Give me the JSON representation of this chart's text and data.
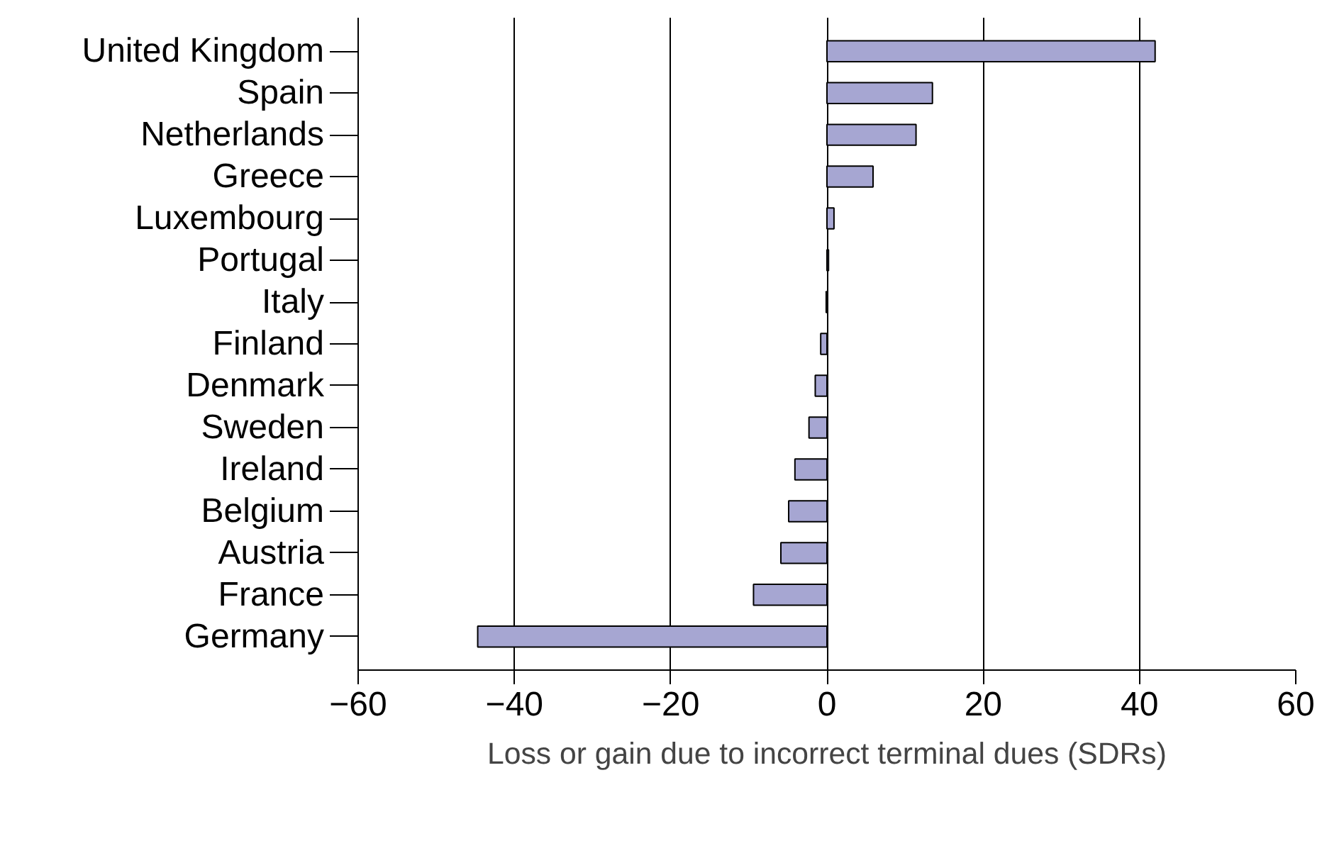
{
  "chart_data": {
    "type": "bar",
    "orientation": "horizontal",
    "xlabel": "Loss or gain due to incorrect terminal dues (SDRs)",
    "categories": [
      "United Kingdom",
      "Spain",
      "Netherlands",
      "Greece",
      "Luxembourg",
      "Portugal",
      "Italy",
      "Finland",
      "Denmark",
      "Sweden",
      "Ireland",
      "Belgium",
      "Austria",
      "France",
      "Germany"
    ],
    "values": [
      42,
      13.5,
      11.4,
      5.9,
      0.9,
      0.2,
      -0.1,
      -0.8,
      -1.5,
      -2.3,
      -4.1,
      -4.9,
      -5.9,
      -9.4,
      -44.7
    ],
    "color": "#a6a6d2",
    "xlim": [
      -60,
      60
    ],
    "xticks": [
      -60,
      -40,
      -20,
      0,
      20,
      40,
      60
    ],
    "grid": "x"
  }
}
